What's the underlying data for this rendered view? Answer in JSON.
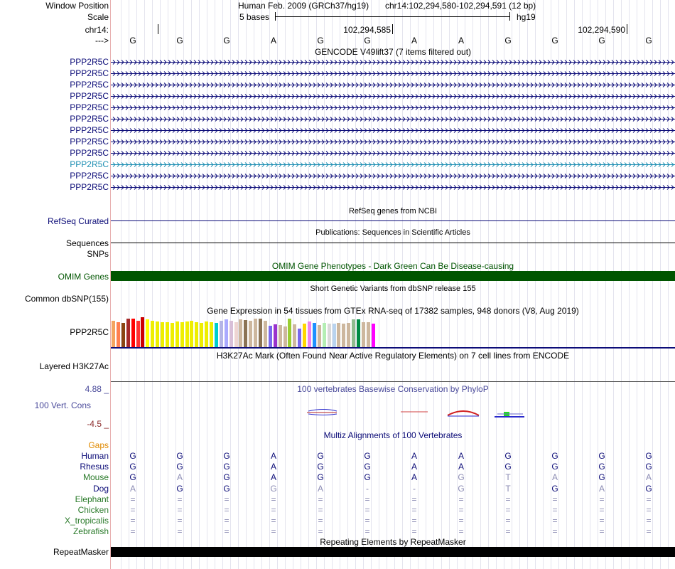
{
  "header": {
    "window_position_label": "Window Position",
    "assembly": "Human Feb. 2009 (GRCh37/hg19)",
    "position": "chr14:102,294,580-102,294,591 (12 bp)",
    "scale_label": "Scale",
    "scale_bases": "5 bases",
    "scale_db": "hg19",
    "chrom_label": "chr14:",
    "coord1": "102,294,585",
    "coord2": "102,294,590",
    "strand_label": "--->"
  },
  "sequence": [
    "G",
    "G",
    "G",
    "A",
    "G",
    "G",
    "A",
    "A",
    "G",
    "G",
    "G",
    "G"
  ],
  "gencode": {
    "title": "GENCODE V49lift37 (7 items filtered out)",
    "items": [
      {
        "label": "PPP2R5C",
        "color": "#0c0c78"
      },
      {
        "label": "PPP2R5C",
        "color": "#0c0c78"
      },
      {
        "label": "PPP2R5C",
        "color": "#0c0c78"
      },
      {
        "label": "PPP2R5C",
        "color": "#0c0c78"
      },
      {
        "label": "PPP2R5C",
        "color": "#0c0c78"
      },
      {
        "label": "PPP2R5C",
        "color": "#0c0c78"
      },
      {
        "label": "PPP2R5C",
        "color": "#0c0c78"
      },
      {
        "label": "PPP2R5C",
        "color": "#0c0c78"
      },
      {
        "label": "PPP2R5C",
        "color": "#0c0c78"
      },
      {
        "label": "PPP2R5C",
        "color": "#1f8fb3"
      },
      {
        "label": "PPP2R5C",
        "color": "#0c0c78"
      },
      {
        "label": "PPP2R5C",
        "color": "#0c0c78"
      }
    ]
  },
  "refseq": {
    "title": "RefSeq genes from NCBI",
    "label": "RefSeq Curated",
    "color": "#0c0c78"
  },
  "publications": {
    "title": "Publications: Sequences in Scientific Articles",
    "label1": "Sequences",
    "label2": "SNPs"
  },
  "omim": {
    "title": "OMIM Gene Phenotypes - Dark Green Can Be Disease-causing",
    "label": "OMIM Genes",
    "color": "#005500"
  },
  "dbsnp": {
    "title": "Short Genetic Variants from dbSNP release 155",
    "label": "Common dbSNP(155)"
  },
  "gtex": {
    "title": "Gene Expression in 54 tissues from GTEx RNA-seq of 17382 samples, 948 donors (V8, Aug 2019)",
    "label": "PPP2R5C",
    "bars": [
      {
        "v": 0.83,
        "c": "#f4a460"
      },
      {
        "v": 0.8,
        "c": "#ff7f50"
      },
      {
        "v": 0.78,
        "c": "#8b4513"
      },
      {
        "v": 0.92,
        "c": "#a52a2a"
      },
      {
        "v": 0.9,
        "c": "#ff0000"
      },
      {
        "v": 0.85,
        "c": "#ff3030"
      },
      {
        "v": 0.96,
        "c": "#cc0000"
      },
      {
        "v": 0.88,
        "c": "#ffff00"
      },
      {
        "v": 0.83,
        "c": "#eeee00"
      },
      {
        "v": 0.82,
        "c": "#eeee00"
      },
      {
        "v": 0.8,
        "c": "#eeee00"
      },
      {
        "v": 0.79,
        "c": "#eeee00"
      },
      {
        "v": 0.77,
        "c": "#eeee00"
      },
      {
        "v": 0.81,
        "c": "#eeee00"
      },
      {
        "v": 0.8,
        "c": "#eeee00"
      },
      {
        "v": 0.82,
        "c": "#eeee00"
      },
      {
        "v": 0.83,
        "c": "#eeee00"
      },
      {
        "v": 0.8,
        "c": "#eeee00"
      },
      {
        "v": 0.78,
        "c": "#eeee00"
      },
      {
        "v": 0.82,
        "c": "#eeee00"
      },
      {
        "v": 0.8,
        "c": "#eeee00"
      },
      {
        "v": 0.78,
        "c": "#00cdcd"
      },
      {
        "v": 0.85,
        "c": "#b4b4e6"
      },
      {
        "v": 0.88,
        "c": "#aaaaff"
      },
      {
        "v": 0.85,
        "c": "#d8bfd8"
      },
      {
        "v": 0.8,
        "c": "#eed5d2"
      },
      {
        "v": 0.88,
        "c": "#cdb79e"
      },
      {
        "v": 0.86,
        "c": "#8b7355"
      },
      {
        "v": 0.85,
        "c": "#cdb79e"
      },
      {
        "v": 0.9,
        "c": "#cdb79e"
      },
      {
        "v": 0.92,
        "c": "#8b7355"
      },
      {
        "v": 0.84,
        "c": "#cdb79e"
      },
      {
        "v": 0.68,
        "c": "#7a67ee"
      },
      {
        "v": 0.72,
        "c": "#9a32cd"
      },
      {
        "v": 0.7,
        "c": "#cdb79e"
      },
      {
        "v": 0.65,
        "c": "#cdb79e"
      },
      {
        "v": 0.9,
        "c": "#9acd32"
      },
      {
        "v": 0.72,
        "c": "#cdb79e"
      },
      {
        "v": 0.6,
        "c": "#7a67ee"
      },
      {
        "v": 0.75,
        "c": "#ffd700"
      },
      {
        "v": 0.82,
        "c": "#ee82ee"
      },
      {
        "v": 0.78,
        "c": "#1e90ff"
      },
      {
        "v": 0.7,
        "c": "#cdb79e"
      },
      {
        "v": 0.78,
        "c": "#b4eeb4"
      },
      {
        "v": 0.75,
        "c": "#d9d9d9"
      },
      {
        "v": 0.76,
        "c": "#b9d3ee"
      },
      {
        "v": 0.78,
        "c": "#cdb79e"
      },
      {
        "v": 0.76,
        "c": "#cdb79e"
      },
      {
        "v": 0.78,
        "c": "#cdb79e"
      },
      {
        "v": 0.88,
        "c": "#8fbc8f"
      },
      {
        "v": 0.88,
        "c": "#008b45"
      },
      {
        "v": 0.8,
        "c": "#cdb79e"
      },
      {
        "v": 0.8,
        "c": "#cdb79e"
      },
      {
        "v": 0.76,
        "c": "#ff00ff"
      }
    ]
  },
  "h3k27ac": {
    "title": "H3K27Ac Mark (Often Found Near Active Regulatory Elements) on 7 cell lines from ENCODE",
    "label": "Layered H3K27Ac"
  },
  "phylop": {
    "title": "100 vertebrates Basewise Conservation by PhyloP",
    "label": "100 Vert. Cons",
    "max": "4.88 _",
    "min": "-4.5 _",
    "color": "#4b4b9b",
    "min_color": "#8b2a2a"
  },
  "multiz": {
    "title": "Multiz Alignments of 100 Vertebrates",
    "gaps_label": "Gaps",
    "species": [
      {
        "name": "Human",
        "color": "#0c0c78",
        "bases": [
          "G",
          "G",
          "G",
          "A",
          "G",
          "G",
          "A",
          "A",
          "G",
          "G",
          "G",
          "G"
        ],
        "dim": []
      },
      {
        "name": "Rhesus",
        "color": "#0c0c78",
        "bases": [
          "G",
          "G",
          "G",
          "A",
          "G",
          "G",
          "A",
          "A",
          "G",
          "G",
          "G",
          "G"
        ],
        "dim": []
      },
      {
        "name": "Mouse",
        "color": "#2a7a2a",
        "bases": [
          "G",
          "A",
          "G",
          "A",
          "G",
          "G",
          "A",
          "G",
          "T",
          "A",
          "G",
          "A"
        ],
        "dim": [
          1,
          7,
          8,
          9,
          11
        ]
      },
      {
        "name": "Dog",
        "color": "#0c0c78",
        "bases": [
          "A",
          "G",
          "G",
          "G",
          "A",
          "-",
          "-",
          "G",
          "T",
          "G",
          "A",
          "G"
        ],
        "dim": [
          0,
          3,
          4,
          5,
          6,
          7,
          8,
          10
        ]
      },
      {
        "name": "Elephant",
        "color": "#2a7a2a",
        "bases": [
          "=",
          "=",
          "=",
          "=",
          "=",
          "=",
          "=",
          "=",
          "=",
          "=",
          "=",
          "="
        ],
        "dim": [
          0,
          1,
          2,
          3,
          4,
          5,
          6,
          7,
          8,
          9,
          10,
          11
        ]
      },
      {
        "name": "Chicken",
        "color": "#2a7a2a",
        "bases": [
          "=",
          "=",
          "=",
          "=",
          "=",
          "=",
          "=",
          "=",
          "=",
          "=",
          "=",
          "="
        ],
        "dim": [
          0,
          1,
          2,
          3,
          4,
          5,
          6,
          7,
          8,
          9,
          10,
          11
        ]
      },
      {
        "name": "X_tropicalis",
        "color": "#2a7a2a",
        "bases": [
          "=",
          "=",
          "=",
          "=",
          "=",
          "=",
          "=",
          "=",
          "=",
          "=",
          "=",
          "="
        ],
        "dim": [
          0,
          1,
          2,
          3,
          4,
          5,
          6,
          7,
          8,
          9,
          10,
          11
        ]
      },
      {
        "name": "Zebrafish",
        "color": "#2a7a2a",
        "bases": [
          "=",
          "=",
          "=",
          "=",
          "=",
          "=",
          "=",
          "=",
          "=",
          "=",
          "=",
          "="
        ],
        "dim": [
          0,
          1,
          2,
          3,
          4,
          5,
          6,
          7,
          8,
          9,
          10,
          11
        ]
      }
    ]
  },
  "repeatmasker": {
    "title": "Repeating Elements by RepeatMasker",
    "label": "RepeatMasker"
  }
}
